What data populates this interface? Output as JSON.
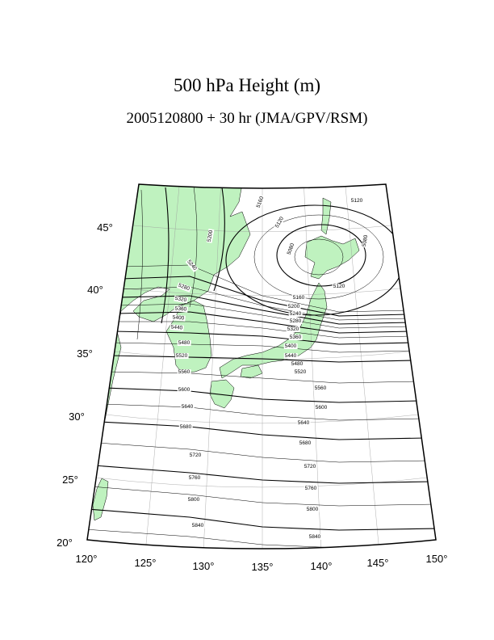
{
  "title": "500 hPa Height (m)",
  "subtitle": "2005120800 + 30 hr (JMA/GPV/RSM)",
  "lat_labels": [
    "20°",
    "25°",
    "30°",
    "35°",
    "40°",
    "45°"
  ],
  "lon_labels": [
    "120°",
    "125°",
    "130°",
    "135°",
    "140°",
    "145°",
    "150°"
  ],
  "contour_labels": [
    "5120",
    "5080",
    "5080",
    "5160",
    "5120",
    "5200",
    "5240",
    "5280",
    "5320",
    "5360",
    "5400",
    "5440",
    "5480",
    "5520",
    "5560",
    "5600",
    "5640",
    "5680",
    "5720",
    "5760",
    "5800",
    "5840",
    "5120",
    "5160",
    "5200",
    "5240",
    "5280",
    "5320",
    "5360",
    "5400",
    "5440",
    "5480",
    "5520",
    "5560",
    "5600",
    "5640",
    "5680",
    "5720",
    "5760",
    "5800",
    "5840"
  ]
}
